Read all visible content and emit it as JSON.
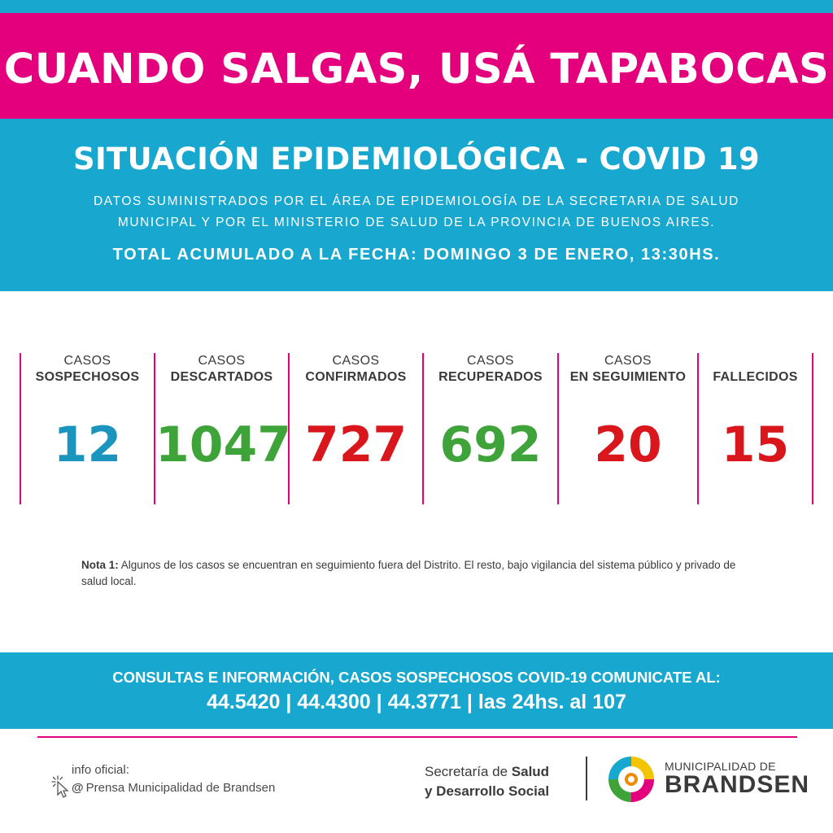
{
  "banner": {
    "headline": "CUANDO SALGAS, USÁ TAPABOCAS"
  },
  "header": {
    "title": "SITUACIÓN EPIDEMIOLÓGICA - COVID 19",
    "source_line1": "DATOS SUMINISTRADOS POR EL ÁREA DE EPIDEMIOLOGÍA DE LA SECRETARIA DE SALUD",
    "source_line2": "MUNICIPAL Y POR EL MINISTERIO DE SALUD DE LA PROVINCIA DE BUENOS AIRES.",
    "date_line": "TOTAL ACUMULADO A LA FECHA: DOMINGO 3 DE ENERO, 13:30HS."
  },
  "stats": [
    {
      "line1": "CASOS",
      "line2": "SOSPECHOSOS",
      "value": "12",
      "color": "#1b95bd"
    },
    {
      "line1": "CASOS",
      "line2": "DESCARTADOS",
      "value": "1047",
      "color": "#3ea43a"
    },
    {
      "line1": "CASOS",
      "line2": "CONFIRMADOS",
      "value": "727",
      "color": "#d9161c"
    },
    {
      "line1": "CASOS",
      "line2": "RECUPERADOS",
      "value": "692",
      "color": "#3ea43a"
    },
    {
      "line1": "CASOS",
      "line2": "EN SEGUIMIENTO",
      "value": "20",
      "color": "#d9161c"
    },
    {
      "line1": "",
      "line2": "FALLECIDOS",
      "value": "15",
      "color": "#d9161c"
    }
  ],
  "note": {
    "label": "Nota 1:",
    "text": " Algunos de los casos se encuentran en seguimiento fuera del Distrito. El resto, bajo vigilancia del sistema público y privado de salud local."
  },
  "contact": {
    "line1": "CONSULTAS E INFORMACIÓN, CASOS SOSPECHOSOS COVID-19 COMUNICATE AL:",
    "line2": "44.5420 | 44.4300 | 44.3771 | las 24hs. al 107"
  },
  "footer": {
    "info_label": "info oficial:",
    "info_at": "@",
    "info_handle": "Prensa Municipalidad de Brandsen",
    "secretaria_prefix": "Secretaría de ",
    "secretaria_bold1": "Salud",
    "secretaria_bold2": "y Desarrollo Social",
    "muni_line1": "MUNICIPALIDAD DE",
    "muni_line2": "BRANDSEN"
  },
  "colors": {
    "pink": "#e4007d",
    "blue": "#18a7ce",
    "text_dark": "#3a3a3a"
  },
  "icons": [
    "cursor-click-icon",
    "brandsen-logo-icon"
  ]
}
